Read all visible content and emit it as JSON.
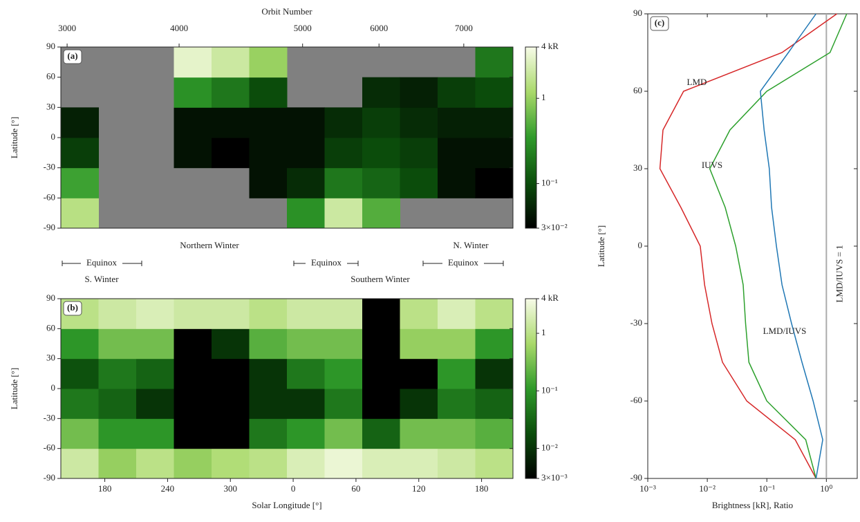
{
  "chart_data": [
    {
      "type": "heatmap",
      "panel": "(a)",
      "x2label": "Orbit Number",
      "ylabel": "Latitude [°]",
      "background": "#808080",
      "xlim": [
        138,
        570
      ],
      "ylim": [
        -90,
        90
      ],
      "x2ticks": [
        {
          "value": 144,
          "label": "3000"
        },
        {
          "value": 251,
          "label": "4000"
        },
        {
          "value": 369,
          "label": "5000"
        },
        {
          "value": 442,
          "label": "6000"
        },
        {
          "value": 523,
          "label": "7000"
        }
      ],
      "yticks": [
        -90,
        -60,
        -30,
        0,
        30,
        60,
        90
      ],
      "x_bins": [
        138,
        174,
        210,
        246,
        282,
        318,
        354,
        390,
        426,
        462,
        498,
        534,
        570
      ],
      "y_bins": [
        -90,
        -60,
        -30,
        0,
        30,
        60,
        90
      ],
      "values": [
        [
          1.5,
          0.4,
          0.08,
          0.05,
          null,
          null
        ],
        [
          null,
          null,
          null,
          null,
          null,
          null
        ],
        [
          null,
          null,
          null,
          null,
          null,
          null
        ],
        [
          null,
          null,
          0.04,
          0.04,
          0.3,
          3
        ],
        [
          null,
          null,
          0.03,
          0.04,
          0.2,
          2
        ],
        [
          null,
          0.04,
          0.04,
          0.04,
          0.1,
          1
        ],
        [
          0.3,
          0.06,
          0.04,
          0.04,
          null,
          null
        ],
        [
          2,
          0.2,
          0.08,
          0.06,
          null,
          null
        ],
        [
          0.5,
          0.15,
          0.1,
          0.08,
          0.06,
          null
        ],
        [
          null,
          0.1,
          0.08,
          0.06,
          0.05,
          null
        ],
        [
          null,
          0.04,
          0.04,
          0.05,
          0.08,
          null
        ],
        [
          null,
          0.03,
          0.04,
          0.05,
          0.1,
          0.2
        ]
      ],
      "colormap": [
        "#000000",
        "#0b4d0b",
        "#2f9a2a",
        "#a9d96a",
        "#f7fbe8"
      ],
      "colorbar": {
        "lim": [
          0.03,
          4
        ],
        "log": true,
        "ticks": [
          {
            "value": 4,
            "label": "4 kR"
          },
          1,
          {
            "value": 0.1,
            "label": "10⁻¹"
          },
          {
            "value": 0.03,
            "label": "3×10⁻²"
          }
        ]
      },
      "annotations": [
        "Northern Winter",
        "N. Winter",
        "Equinox",
        "Equinox",
        "Equinox",
        "S. Winter",
        "Southern Winter"
      ]
    },
    {
      "type": "heatmap",
      "panel": "(b)",
      "xlabel": "Solar Longitude [°]",
      "ylabel": "Latitude [°]",
      "xlim": [
        138,
        570
      ],
      "ylim": [
        -90,
        90
      ],
      "xticks": [
        {
          "value": 180,
          "label": "180"
        },
        {
          "value": 240,
          "label": "240"
        },
        {
          "value": 300,
          "label": "300"
        },
        {
          "value": 360,
          "label": "0"
        },
        {
          "value": 420,
          "label": "60"
        },
        {
          "value": 480,
          "label": "120"
        },
        {
          "value": 540,
          "label": "180"
        }
      ],
      "yticks": [
        -90,
        -60,
        -30,
        0,
        30,
        60,
        90
      ],
      "x_bins": [
        138,
        174,
        210,
        246,
        282,
        318,
        354,
        390,
        426,
        462,
        498,
        534,
        570
      ],
      "y_bins": [
        -90,
        -60,
        -30,
        0,
        30,
        60,
        90
      ],
      "values": [
        [
          1.5,
          0.3,
          0.05,
          0.02,
          0.1,
          1
        ],
        [
          0.5,
          0.1,
          0.03,
          0.05,
          0.3,
          1.5
        ],
        [
          1,
          0.1,
          0.01,
          0.03,
          0.3,
          2
        ],
        [
          0.5,
          0.003,
          0.003,
          0.003,
          0.003,
          1.5
        ],
        [
          0.8,
          0.003,
          0.003,
          0.003,
          0.01,
          1.5
        ],
        [
          1,
          0.05,
          0.01,
          0.01,
          0.2,
          1
        ],
        [
          2,
          0.1,
          0.01,
          0.05,
          0.3,
          1.5
        ],
        [
          3,
          0.3,
          0.05,
          0.1,
          0.3,
          1.5
        ],
        [
          2,
          0.03,
          0.003,
          0.003,
          0.003,
          0.003
        ],
        [
          2,
          0.3,
          0.01,
          0.003,
          0.5,
          1
        ],
        [
          1.5,
          0.3,
          0.05,
          0.1,
          0.5,
          2
        ],
        [
          1,
          0.2,
          0.03,
          0.01,
          0.1,
          1
        ]
      ],
      "colormap": [
        "#000000",
        "#0b4d0b",
        "#2f9a2a",
        "#a9d96a",
        "#f7fbe8"
      ],
      "colorbar": {
        "lim": [
          0.003,
          4
        ],
        "log": true,
        "ticks": [
          {
            "value": 4,
            "label": "4 kR"
          },
          1,
          {
            "value": 0.1,
            "label": "10⁻¹"
          },
          {
            "value": 0.01,
            "label": "10⁻²"
          },
          {
            "value": 0.003,
            "label": "3×10⁻³"
          }
        ]
      }
    },
    {
      "type": "line",
      "panel": "(c)",
      "xlabel": "Brightness [kR], Ratio",
      "ylabel": "Latitude [°]",
      "xlog": true,
      "xlim": [
        0.001,
        3.3
      ],
      "ylim": [
        -90,
        90
      ],
      "xticks": [
        {
          "value": 0.001,
          "label": "10⁻³"
        },
        {
          "value": 0.01,
          "label": "10⁻²"
        },
        {
          "value": 0.1,
          "label": "10⁻¹"
        },
        {
          "value": 1,
          "label": "10⁰"
        }
      ],
      "yticks": [
        -90,
        -60,
        -30,
        0,
        30,
        60,
        90
      ],
      "y": [
        -90,
        -75,
        -60,
        -45,
        -30,
        -15,
        0,
        15,
        30,
        45,
        60,
        75,
        90
      ],
      "series": [
        {
          "name": "LMD",
          "color": "#d62728",
          "values": [
            0.67,
            0.3,
            0.046,
            0.018,
            0.012,
            0.009,
            0.0076,
            0.0036,
            0.0016,
            0.0018,
            0.004,
            0.18,
            1.5
          ]
        },
        {
          "name": "IUVS",
          "color": "#2ca02c",
          "values": [
            0.67,
            0.45,
            0.1,
            0.05,
            0.044,
            0.04,
            0.03,
            0.02,
            0.011,
            0.024,
            0.1,
            1.15,
            2.2
          ]
        },
        {
          "name": "LMD/IUVS",
          "color": "#1f77b4",
          "values": [
            0.67,
            0.87,
            0.6,
            0.39,
            0.26,
            0.18,
            0.145,
            0.12,
            0.11,
            0.09,
            0.078,
            0.23,
            0.67
          ]
        }
      ],
      "reference": {
        "value": 1,
        "label": "LMD/IUVS = 1",
        "color": "#aaaaaa"
      }
    }
  ]
}
